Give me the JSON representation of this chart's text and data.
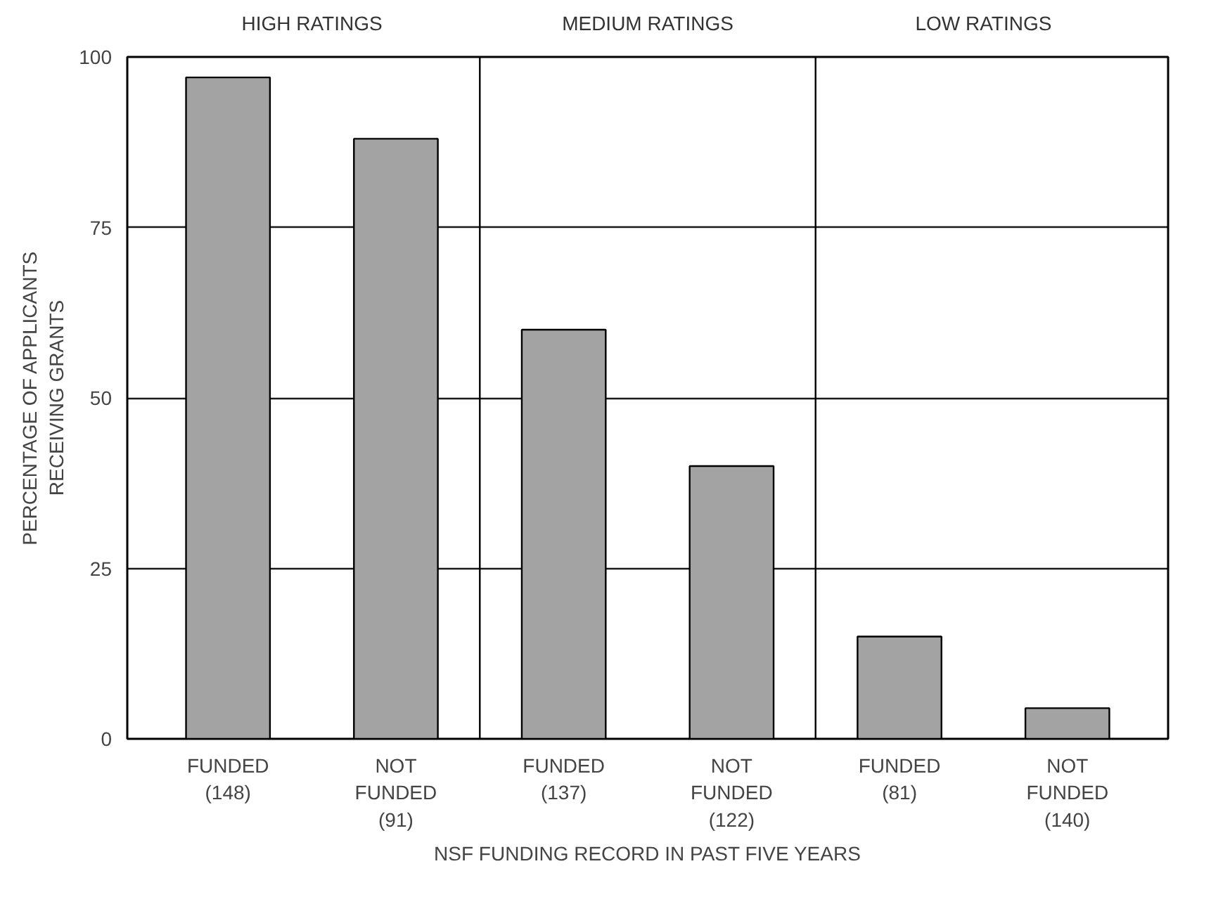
{
  "chart_data": {
    "type": "bar",
    "xlabel": "NSF FUNDING RECORD IN PAST FIVE YEARS",
    "ylabel": "PERCENTAGE OF APPLICANTS\nRECEIVING GRANTS",
    "categories": [
      "FUNDED\n(148)",
      "NOT\nFUNDED\n(91)",
      "FUNDED\n(137)",
      "NOT\nFUNDED\n(122)",
      "FUNDED\n(81)",
      "NOT\nFUNDED\n(140)"
    ],
    "values": [
      97,
      88,
      60,
      40,
      15,
      4.5
    ],
    "color": "#a3a3a3",
    "annotations": [
      "HIGH RATINGS",
      "MEDIUM RATINGS",
      "LOW RATINGS"
    ],
    "ylim": [
      0,
      100
    ],
    "yticks": [
      0,
      25,
      50,
      75,
      100
    ],
    "grid": "y"
  }
}
